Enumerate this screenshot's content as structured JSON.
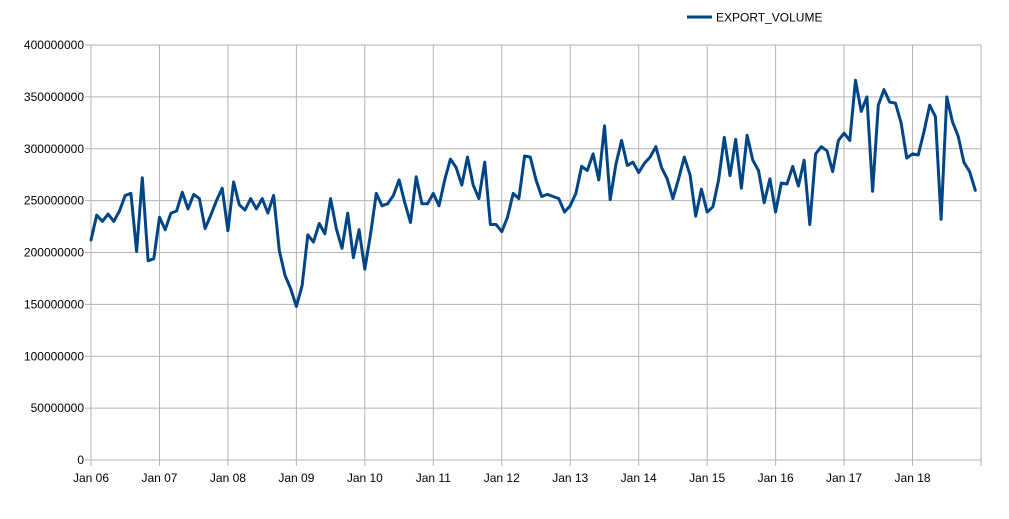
{
  "chart_data": {
    "type": "line",
    "title": "",
    "xlabel": "",
    "ylabel": "",
    "grid": true,
    "legend_position": "top-right",
    "x_start": "2006-01",
    "x_end": "2019-01",
    "x_tick_labels": [
      "Jan 06",
      "Jan 07",
      "Jan 08",
      "Jan 09",
      "Jan 10",
      "Jan 11",
      "Jan 12",
      "Jan 13",
      "Jan 14",
      "Jan 15",
      "Jan 16",
      "Jan 17",
      "Jan 18"
    ],
    "ylim": [
      0,
      400000000
    ],
    "y_tick_labels": [
      "0",
      "50000000",
      "100000000",
      "150000000",
      "200000000",
      "250000000",
      "300000000",
      "350000000",
      "400000000"
    ],
    "colors": {
      "line": "#004586",
      "grid": "#b3b3b3",
      "axis": "#b3b3b3"
    },
    "series": [
      {
        "name": "EXPORT_VOLUME",
        "x": [
          "2006-01",
          "2006-02",
          "2006-03",
          "2006-04",
          "2006-05",
          "2006-06",
          "2006-07",
          "2006-08",
          "2006-09",
          "2006-10",
          "2006-11",
          "2006-12",
          "2007-01",
          "2007-02",
          "2007-03",
          "2007-04",
          "2007-05",
          "2007-06",
          "2007-07",
          "2007-08",
          "2007-09",
          "2007-10",
          "2007-11",
          "2007-12",
          "2008-01",
          "2008-02",
          "2008-03",
          "2008-04",
          "2008-05",
          "2008-06",
          "2008-07",
          "2008-08",
          "2008-09",
          "2008-10",
          "2008-11",
          "2008-12",
          "2009-01",
          "2009-02",
          "2009-03",
          "2009-04",
          "2009-05",
          "2009-06",
          "2009-07",
          "2009-08",
          "2009-09",
          "2009-10",
          "2009-11",
          "2009-12",
          "2010-01",
          "2010-02",
          "2010-03",
          "2010-04",
          "2010-05",
          "2010-06",
          "2010-07",
          "2010-08",
          "2010-09",
          "2010-10",
          "2010-11",
          "2010-12",
          "2011-01",
          "2011-02",
          "2011-03",
          "2011-04",
          "2011-05",
          "2011-06",
          "2011-07",
          "2011-08",
          "2011-09",
          "2011-10",
          "2011-11",
          "2011-12",
          "2012-01",
          "2012-02",
          "2012-03",
          "2012-04",
          "2012-05",
          "2012-06",
          "2012-07",
          "2012-08",
          "2012-09",
          "2012-10",
          "2012-11",
          "2012-12",
          "2013-01",
          "2013-02",
          "2013-03",
          "2013-04",
          "2013-05",
          "2013-06",
          "2013-07",
          "2013-08",
          "2013-09",
          "2013-10",
          "2013-11",
          "2013-12",
          "2014-01",
          "2014-02",
          "2014-03",
          "2014-04",
          "2014-05",
          "2014-06",
          "2014-07",
          "2014-08",
          "2014-09",
          "2014-10",
          "2014-11",
          "2014-12",
          "2015-01",
          "2015-02",
          "2015-03",
          "2015-04",
          "2015-05",
          "2015-06",
          "2015-07",
          "2015-08",
          "2015-09",
          "2015-10",
          "2015-11",
          "2015-12",
          "2016-01",
          "2016-02",
          "2016-03",
          "2016-04",
          "2016-05",
          "2016-06",
          "2016-07",
          "2016-08",
          "2016-09",
          "2016-10",
          "2016-11",
          "2016-12",
          "2017-01",
          "2017-02",
          "2017-03",
          "2017-04",
          "2017-05",
          "2017-06",
          "2017-07",
          "2017-08",
          "2017-09",
          "2017-10",
          "2017-11",
          "2017-12",
          "2018-01",
          "2018-02",
          "2018-03",
          "2018-04",
          "2018-05",
          "2018-06",
          "2018-07",
          "2018-08",
          "2018-09",
          "2018-10",
          "2018-11",
          "2018-12"
        ],
        "values": [
          212000000,
          236000000,
          230000000,
          237000000,
          230000000,
          240000000,
          255000000,
          257000000,
          201000000,
          272000000,
          192000000,
          194000000,
          234000000,
          222000000,
          238000000,
          240000000,
          258000000,
          242000000,
          256000000,
          252000000,
          223000000,
          236000000,
          250000000,
          262000000,
          221000000,
          268000000,
          246000000,
          241000000,
          252000000,
          242000000,
          252000000,
          238000000,
          255000000,
          202000000,
          178000000,
          165000000,
          148000000,
          168000000,
          217000000,
          210000000,
          228000000,
          218000000,
          252000000,
          223000000,
          204000000,
          238000000,
          195000000,
          222000000,
          184000000,
          218000000,
          257000000,
          245000000,
          247000000,
          255000000,
          270000000,
          248000000,
          229000000,
          273000000,
          247000000,
          247000000,
          257000000,
          245000000,
          270000000,
          290000000,
          282000000,
          265000000,
          292000000,
          265000000,
          252000000,
          287000000,
          227000000,
          227000000,
          220000000,
          234000000,
          257000000,
          252000000,
          293000000,
          292000000,
          270000000,
          254000000,
          256000000,
          254000000,
          252000000,
          239000000,
          245000000,
          257000000,
          283000000,
          279000000,
          295000000,
          270000000,
          322000000,
          251000000,
          285000000,
          308000000,
          284000000,
          287000000,
          277000000,
          286000000,
          292000000,
          302000000,
          282000000,
          271000000,
          252000000,
          271000000,
          292000000,
          275000000,
          235000000,
          261000000,
          239000000,
          244000000,
          270000000,
          311000000,
          274000000,
          309000000,
          262000000,
          313000000,
          289000000,
          279000000,
          248000000,
          271000000,
          239000000,
          267000000,
          266000000,
          283000000,
          264000000,
          289000000,
          227000000,
          295000000,
          302000000,
          298000000,
          278000000,
          308000000,
          315000000,
          308000000,
          366000000,
          336000000,
          350000000,
          259000000,
          342000000,
          357000000,
          345000000,
          344000000,
          325000000,
          291000000,
          295000000,
          294000000,
          316000000,
          342000000,
          331000000,
          232000000,
          350000000,
          326000000,
          312000000,
          287000000,
          278000000,
          260000000
        ]
      }
    ]
  }
}
